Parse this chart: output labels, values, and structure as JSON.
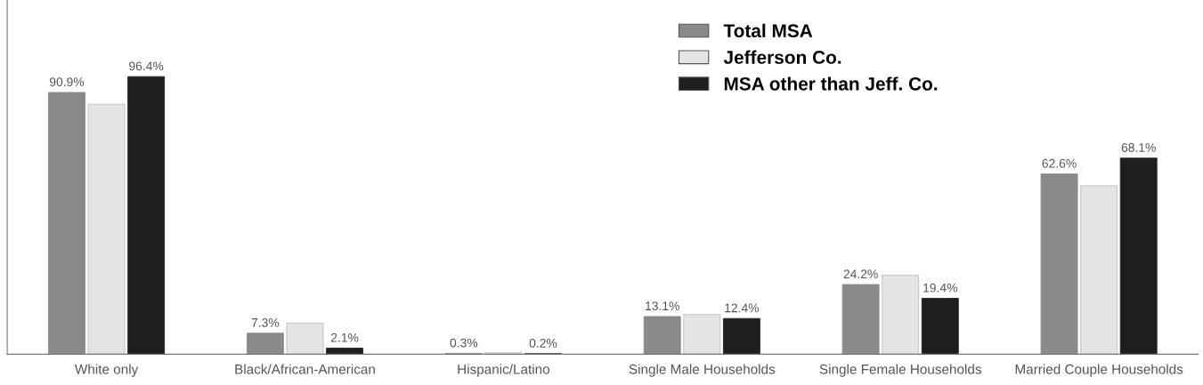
{
  "chart_data": {
    "type": "bar",
    "categories": [
      "White only",
      "Black/African-American",
      "Hispanic/Latino",
      "Single Male Households",
      "Single Female Households",
      "Married Couple Households"
    ],
    "series": [
      {
        "name": "Total MSA",
        "color": "#8a8a8a",
        "values": [
          90.9,
          7.3,
          0.3,
          13.1,
          24.2,
          62.6
        ],
        "value_labels": [
          "90.9%",
          "7.3%",
          "0.3%",
          "13.1%",
          "24.2%",
          "62.6%"
        ]
      },
      {
        "name": "Jefferson Co.",
        "color": "#e4e4e4",
        "values": [
          86.8,
          10.8,
          0.5,
          13.8,
          27.4,
          58.5
        ]
      },
      {
        "name": "MSA other than Jeff. Co.",
        "color": "#1e1e1e",
        "values": [
          96.4,
          2.1,
          0.2,
          12.4,
          19.4,
          68.1
        ],
        "value_labels": [
          "96.4%",
          "2.1%",
          "0.2%",
          "12.4%",
          "19.4%",
          "68.1%"
        ]
      }
    ],
    "ylim": [
      0,
      123
    ],
    "grid": false,
    "legend": "top"
  }
}
